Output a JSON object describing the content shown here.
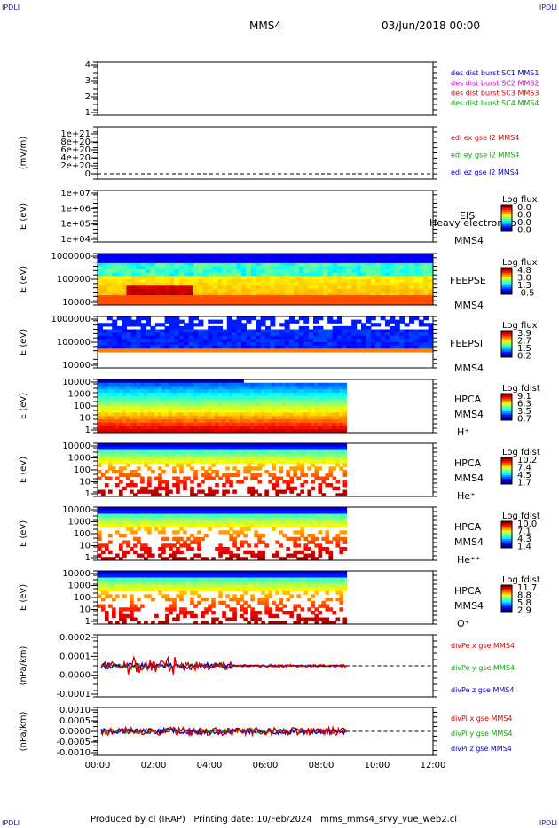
{
  "corners": {
    "tl": "IPDLI",
    "tr": "IPDLI",
    "bl": "IPDLI",
    "br": "IPDLI"
  },
  "header": {
    "spacecraft": "MMS4",
    "date": "03/Jun/2018 00:00"
  },
  "footer": "Produced by cl (IRAP)   Printing date: 10/Feb/2024   mms_mms4_srvy_vue_web2.cl",
  "colors": {
    "blue": "#0000cc",
    "red": "#dd0000",
    "green": "#00cc00",
    "magenta": "#cc00cc"
  },
  "chart_data": [
    {
      "type": "line",
      "id": "burst",
      "yticks": [
        "4",
        "3",
        "2",
        "1"
      ],
      "legend": [
        {
          "text": "des dist burst SC1 MMS1",
          "color": "#0000cc"
        },
        {
          "text": "des dist burst SC2 MMS2",
          "color": "#cc00cc"
        },
        {
          "text": "des dist burst SC3 MMS3",
          "color": "#dd0000"
        },
        {
          "text": "des dist burst SC4 MMS4",
          "color": "#00aa00"
        }
      ]
    },
    {
      "type": "line",
      "id": "edi",
      "ylabel": "(mV/m)",
      "yticks": [
        "1e+21",
        "8e+20",
        "6e+20",
        "4e+20",
        "2e+20",
        "0"
      ],
      "legend": [
        {
          "text": "edi ex gse l2 MMS4",
          "color": "#dd0000"
        },
        {
          "text": "edi ey gse l2 MMS4",
          "color": "#00aa00"
        },
        {
          "text": "edi ez gse l2 MMS4",
          "color": "#0000cc"
        }
      ]
    },
    {
      "type": "heatmap",
      "id": "eis",
      "ylabel": "E (eV)",
      "yticks": [
        "1e+07",
        "1e+06",
        "1e+05",
        "1e+04"
      ],
      "labels": [
        "EIS",
        "Heavy electron to",
        "MMS4"
      ],
      "cbar_title": "Log flux",
      "cbar_ticks": [
        "0.0",
        "0.0",
        "0.0",
        "0.0"
      ]
    },
    {
      "type": "heatmap",
      "id": "feepse",
      "ylabel": "E (eV)",
      "yticks": [
        "1000000",
        "100000",
        "10000"
      ],
      "labels": [
        "FEEPSE",
        "MMS4"
      ],
      "cbar_title": "Log flux",
      "cbar_ticks": [
        "4.8",
        "3.0",
        "1.3",
        "-0.5"
      ]
    },
    {
      "type": "heatmap",
      "id": "feepsi",
      "ylabel": "E (eV)",
      "yticks": [
        "1000000",
        "100000",
        "10000"
      ],
      "labels": [
        "FEEPSI",
        "MMS4"
      ],
      "cbar_title": "Log flux",
      "cbar_ticks": [
        "3.9",
        "2.7",
        "1.5",
        "0.2"
      ]
    },
    {
      "type": "heatmap",
      "id": "hpca_h",
      "ylabel": "E (eV)",
      "yticks": [
        "10000",
        "1000",
        "100",
        "10",
        "1"
      ],
      "labels": [
        "HPCA",
        "MMS4",
        "H⁺"
      ],
      "cbar_title": "Log fdist",
      "cbar_ticks": [
        "9.1",
        "6.3",
        "3.5",
        "0.7"
      ]
    },
    {
      "type": "heatmap",
      "id": "hpca_he",
      "ylabel": "E (eV)",
      "yticks": [
        "10000",
        "1000",
        "100",
        "10",
        "1"
      ],
      "labels": [
        "HPCA",
        "MMS4",
        "He⁺"
      ],
      "cbar_title": "Log fdist",
      "cbar_ticks": [
        "10.2",
        "7.4",
        "4.5",
        "1.7"
      ]
    },
    {
      "type": "heatmap",
      "id": "hpca_hepp",
      "ylabel": "E (eV)",
      "yticks": [
        "10000",
        "1000",
        "100",
        "10",
        "1"
      ],
      "labels": [
        "HPCA",
        "MMS4",
        "He⁺⁺"
      ],
      "cbar_title": "Log fdist",
      "cbar_ticks": [
        "10.0",
        "7.1",
        "4.3",
        "1.4"
      ]
    },
    {
      "type": "heatmap",
      "id": "hpca_o",
      "ylabel": "E (eV)",
      "yticks": [
        "10000",
        "1000",
        "100",
        "10",
        "1"
      ],
      "labels": [
        "HPCA",
        "MMS4",
        "O⁺"
      ],
      "cbar_title": "Log fdist",
      "cbar_ticks": [
        "11.7",
        "8.8",
        "5.8",
        "2.9"
      ]
    },
    {
      "type": "line",
      "id": "divpe",
      "ylabel": "(nPa/km)",
      "yticks": [
        "0.0002",
        "0.0001",
        "0.0000",
        "-0.0001"
      ],
      "legend": [
        {
          "text": "divPe x gse MMS4",
          "color": "#dd0000"
        },
        {
          "text": "divPe y gse MMS4",
          "color": "#00aa00"
        },
        {
          "text": "divPe z gse MMS4",
          "color": "#0000cc"
        }
      ]
    },
    {
      "type": "line",
      "id": "divpi",
      "ylabel": "(nPa/km)",
      "yticks": [
        "0.0010",
        "0.0005",
        "0.0000",
        "-0.0005",
        "-0.0010"
      ],
      "legend": [
        {
          "text": "divPi x gse MMS4",
          "color": "#dd0000"
        },
        {
          "text": "divPi y gse MMS4",
          "color": "#00aa00"
        },
        {
          "text": "divPi z gse MMS4",
          "color": "#0000cc"
        }
      ]
    }
  ],
  "xaxis": {
    "ticks": [
      "00:00",
      "02:00",
      "04:00",
      "06:00",
      "08:00",
      "10:00",
      "12:00"
    ],
    "range": [
      "00:00",
      "12:00"
    ]
  }
}
